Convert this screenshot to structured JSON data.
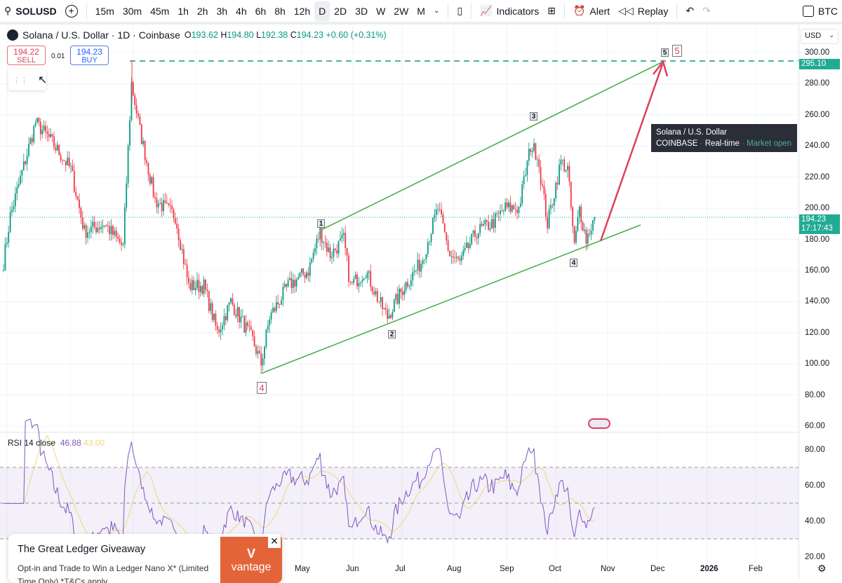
{
  "toolbar": {
    "symbol": "SOLUSD",
    "intervals": [
      "15m",
      "30m",
      "45m",
      "1h",
      "2h",
      "3h",
      "4h",
      "6h",
      "8h",
      "12h",
      "D",
      "2D",
      "3D",
      "W",
      "2W",
      "M"
    ],
    "active_interval": "D",
    "indicators": "Indicators",
    "alert": "Alert",
    "replay": "Replay",
    "compare_symbol": "BTC"
  },
  "legend": {
    "title": "Solana / U.S. Dollar · 1D · Coinbase",
    "o_label": "O",
    "o": "193.62",
    "h_label": "H",
    "h": "194.80",
    "l_label": "L",
    "l": "192.38",
    "c_label": "C",
    "c": "194.23",
    "change": "+0.60 (+0.31%)"
  },
  "trade": {
    "sell_price": "194.22",
    "sell": "SELL",
    "spread": "0.01",
    "buy_price": "194.23",
    "buy": "BUY"
  },
  "price_axis": {
    "currency": "USD",
    "ticks": [
      "300.00",
      "280.00",
      "260.00",
      "240.00",
      "220.00",
      "200.00",
      "180.00",
      "160.00",
      "140.00",
      "120.00",
      "100.00",
      "80.00",
      "60.00"
    ],
    "target_tag": "295.10",
    "last_price": "194.23",
    "countdown": "17:17:43"
  },
  "tooltip": {
    "title": "Solana / U.S. Dollar",
    "exchange": "COINBASE",
    "feed": "Real-time",
    "status": "Market open"
  },
  "waves": {
    "w1": "1",
    "w2": "2",
    "w3": "3",
    "w4": "4",
    "w5": "5",
    "big4": "4",
    "big5": "5"
  },
  "rsi": {
    "label": "RSI 14 close",
    "value": "46.88",
    "ma": "43.00",
    "ticks": [
      "80.00",
      "60.00",
      "40.00",
      "20.00"
    ]
  },
  "time_axis": [
    "May",
    "Jun",
    "Jul",
    "Aug",
    "Sep",
    "Oct",
    "Nov",
    "Dec",
    "2026",
    "Feb"
  ],
  "ad": {
    "title": "The Great Ledger Giveaway",
    "body": "Opt-in and Trade to Win a Ledger Nano X* (Limited Time Only) *T&Cs apply",
    "brand": "vantage"
  },
  "colors": {
    "up": "#089981",
    "down": "#f23645",
    "channel": "#4caf50",
    "arrow": "#e03e5a",
    "rsi": "#7e57c2",
    "rsi_ma": "#f0d77a",
    "accent": "#22ab94"
  },
  "chart_data": {
    "type": "candlestick",
    "price_path_day_close": [
      [
        0,
        165
      ],
      [
        4,
        195
      ],
      [
        19,
        255
      ],
      [
        27,
        245
      ],
      [
        40,
        225
      ],
      [
        48,
        185
      ],
      [
        60,
        190
      ],
      [
        71,
        175
      ],
      [
        76,
        280
      ],
      [
        81,
        250
      ],
      [
        90,
        205
      ],
      [
        102,
        195
      ],
      [
        110,
        150
      ],
      [
        119,
        150
      ],
      [
        127,
        120
      ],
      [
        135,
        140
      ],
      [
        148,
        115
      ],
      [
        153,
        100
      ],
      [
        158,
        130
      ],
      [
        169,
        150
      ],
      [
        181,
        160
      ],
      [
        188,
        185
      ],
      [
        194,
        170
      ],
      [
        202,
        180
      ],
      [
        206,
        150
      ],
      [
        215,
        160
      ],
      [
        223,
        140
      ],
      [
        228,
        130
      ],
      [
        238,
        150
      ],
      [
        248,
        165
      ],
      [
        258,
        200
      ],
      [
        265,
        170
      ],
      [
        271,
        165
      ],
      [
        281,
        185
      ],
      [
        290,
        190
      ],
      [
        298,
        200
      ],
      [
        306,
        200
      ],
      [
        313,
        240
      ],
      [
        317,
        235
      ],
      [
        323,
        190
      ],
      [
        331,
        230
      ],
      [
        335,
        225
      ],
      [
        339,
        175
      ],
      [
        342,
        200
      ],
      [
        346,
        180
      ],
      [
        351,
        194
      ]
    ],
    "ylim": [
      60,
      300
    ]
  }
}
